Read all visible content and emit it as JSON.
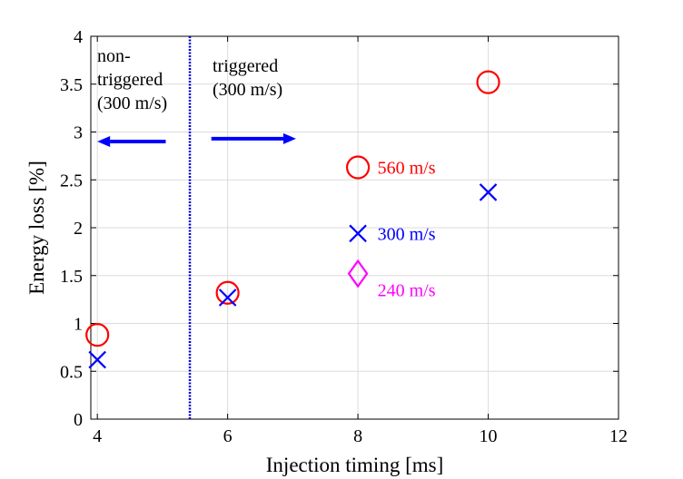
{
  "chart_data": {
    "type": "scatter",
    "title": "",
    "xlabel": "Injection timing [ms]",
    "ylabel": "Energy loss [%]",
    "xlim": [
      3.9,
      12
    ],
    "ylim": [
      0,
      4
    ],
    "xticks": [
      4,
      6,
      8,
      10,
      12
    ],
    "yticks": [
      0,
      0.5,
      1,
      1.5,
      2,
      2.5,
      3,
      3.5,
      4
    ],
    "xtick_labels": [
      "4",
      "6",
      "8",
      "10",
      "12"
    ],
    "ytick_labels": [
      "0",
      "0.5",
      "1",
      "1.5",
      "2",
      "2.5",
      "3",
      "3.5",
      "4"
    ],
    "grid": true,
    "series": [
      {
        "name": "560 m/s",
        "marker": "circle",
        "color": "#ff0000",
        "x": [
          4,
          6,
          8,
          10
        ],
        "y": [
          0.88,
          1.32,
          2.63,
          3.52
        ]
      },
      {
        "name": "300 m/s",
        "marker": "x",
        "color": "#0000ff",
        "x": [
          4,
          6,
          8,
          10
        ],
        "y": [
          0.62,
          1.27,
          1.94,
          2.37
        ]
      },
      {
        "name": "240 m/s",
        "marker": "diamond",
        "color": "#ff00ff",
        "x": [
          8
        ],
        "y": [
          1.52
        ]
      }
    ],
    "legend_labels": [
      {
        "text": "560 m/s",
        "color": "#ff0000",
        "x": 8.3,
        "y": 2.63
      },
      {
        "text": "300 m/s",
        "color": "#0000ff",
        "x": 8.3,
        "y": 1.94
      },
      {
        "text": "240 m/s",
        "color": "#ff00ff",
        "x": 8.3,
        "y": 1.35
      }
    ],
    "divider_x": 5.42,
    "region_labels": {
      "left": [
        "non-",
        "triggered",
        "(300 m/s)"
      ],
      "right": [
        "triggered",
        "(300 m/s)"
      ]
    },
    "arrows": [
      {
        "direction": "left",
        "x_from": 5.05,
        "x_to": 4.0,
        "y": 2.9,
        "color": "#0000ff"
      },
      {
        "direction": "right",
        "x_from": 5.75,
        "x_to": 7.05,
        "y": 2.93,
        "color": "#0000ff"
      }
    ]
  }
}
